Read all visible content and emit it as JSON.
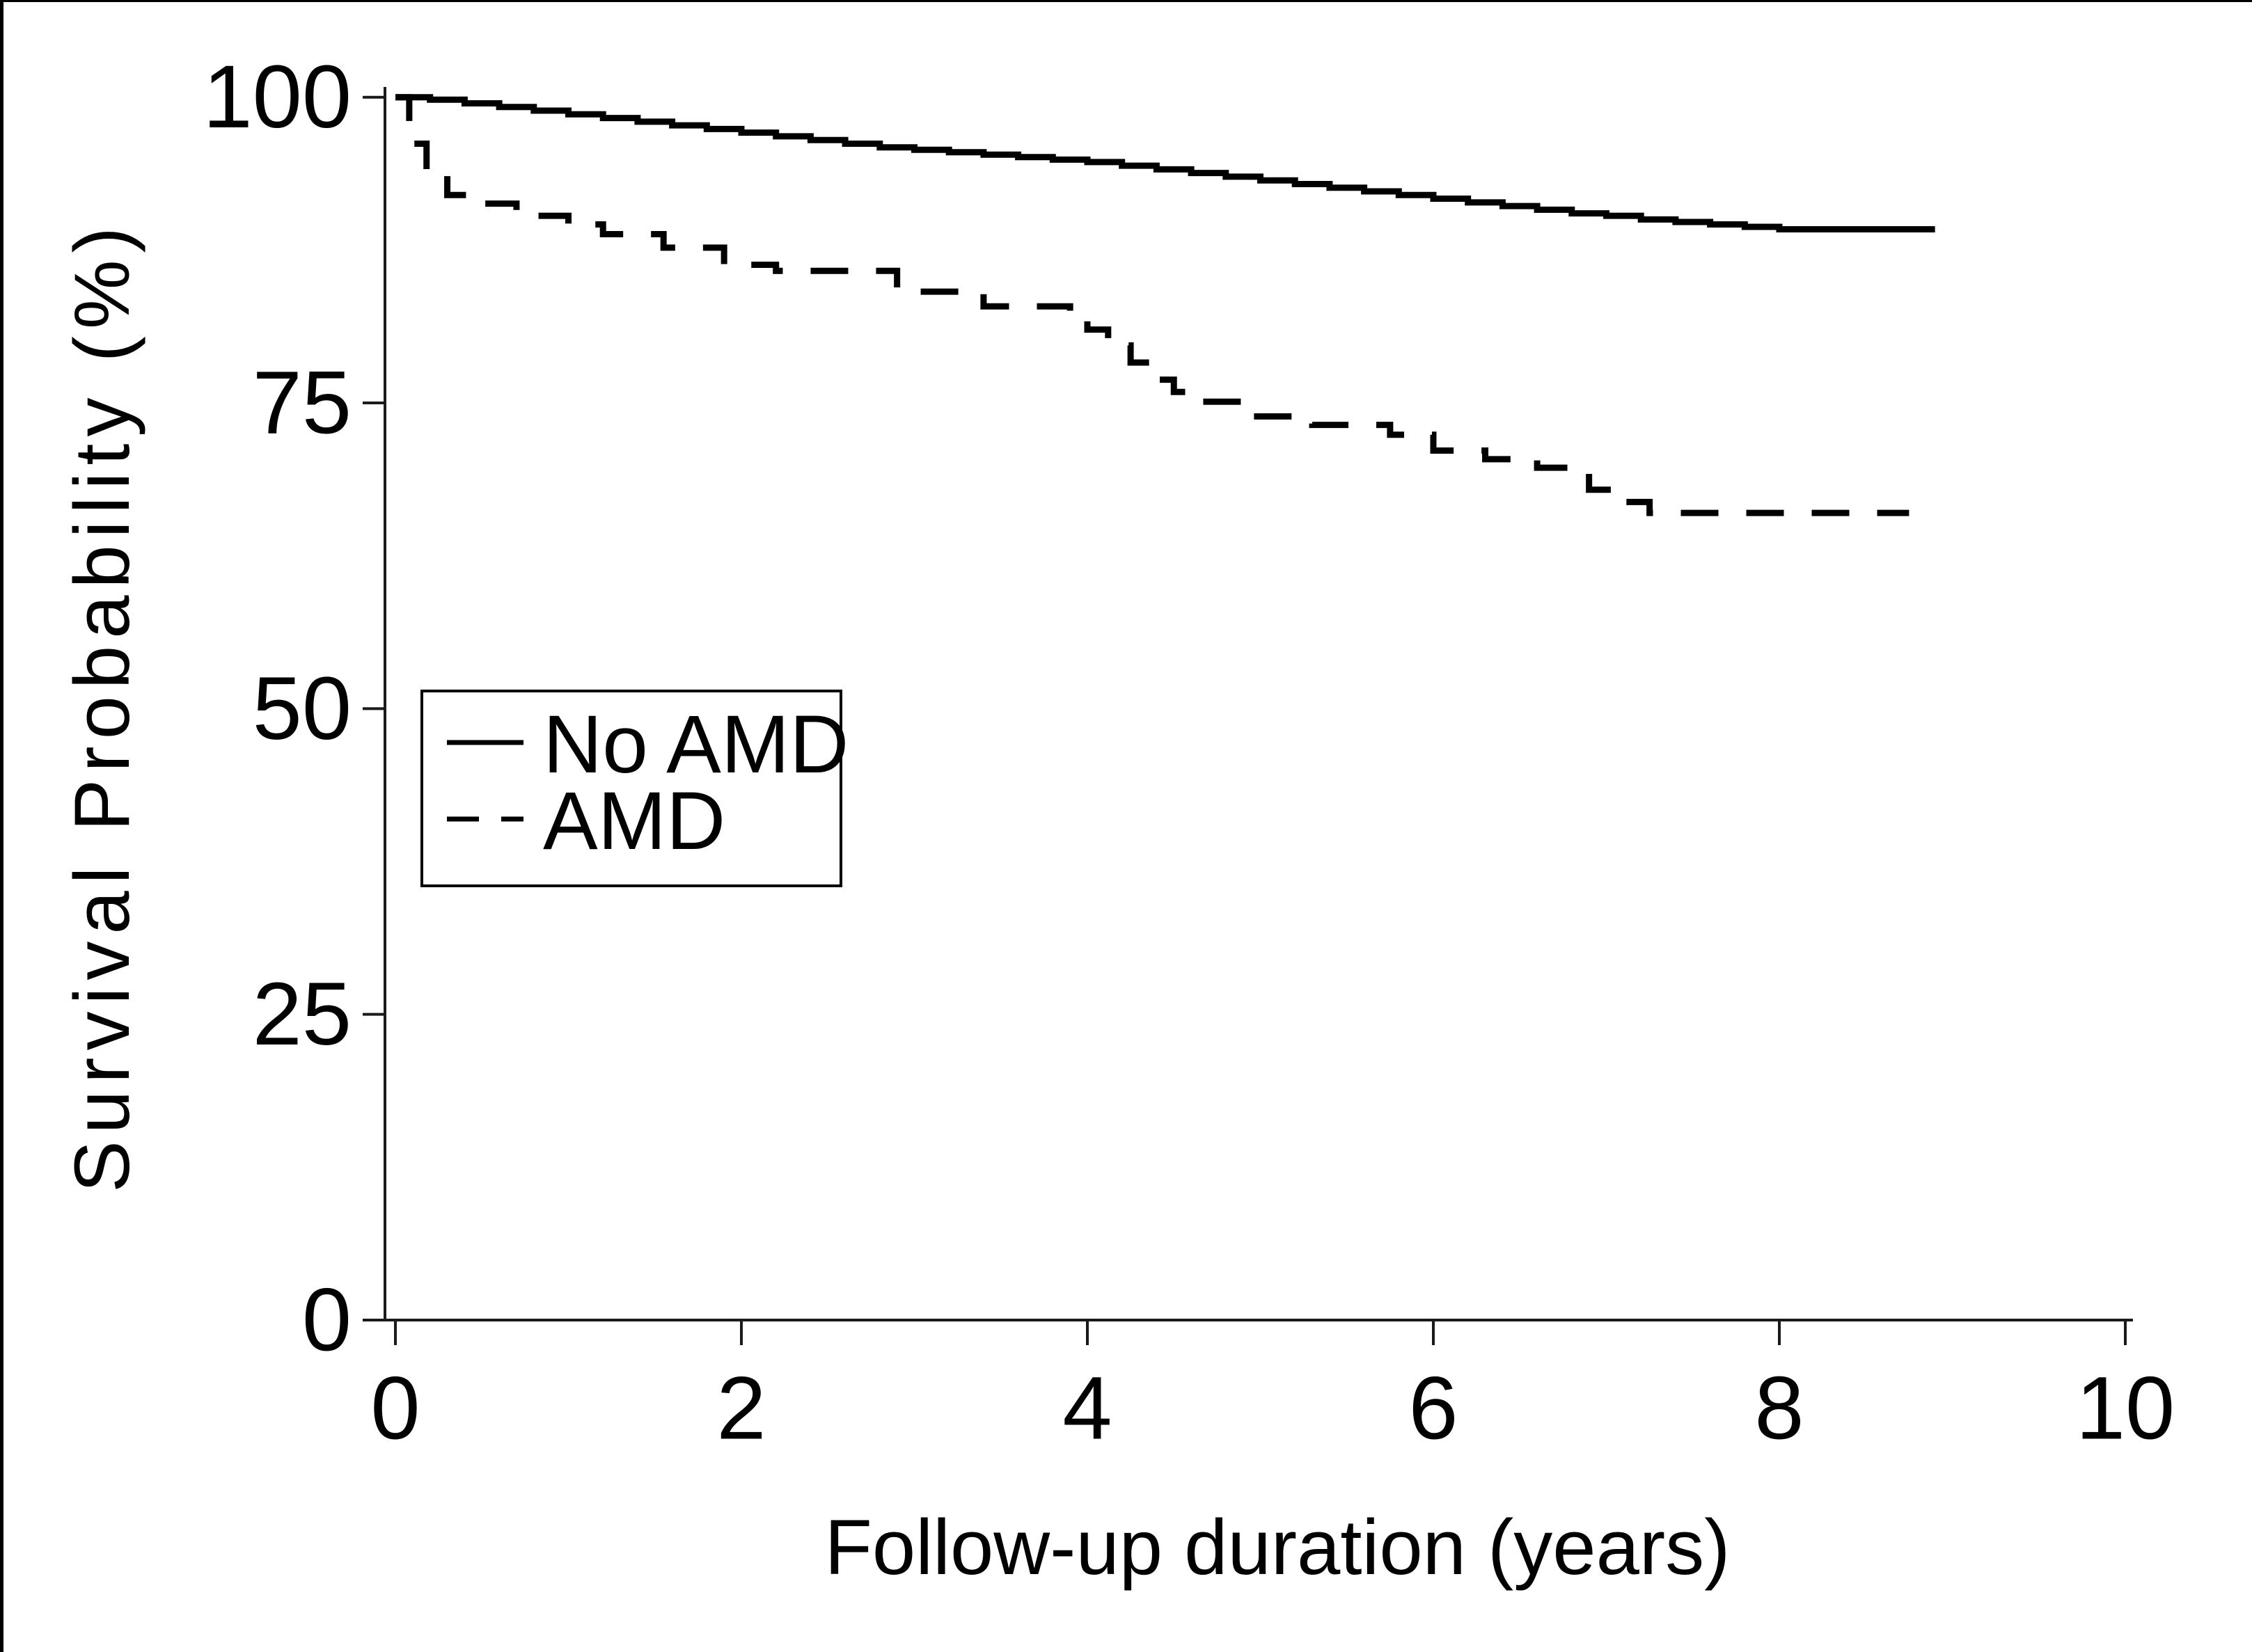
{
  "page": {
    "background": "#ffffff",
    "edge_border_color": "#000000",
    "curve_color": "#000000",
    "axis_color": "#1a1a1a"
  },
  "chart_data": {
    "type": "line",
    "subtype": "kaplan-meier-step",
    "title": "",
    "xlabel": "Follow-up duration (years)",
    "ylabel": "Survival Probability (%)",
    "xlim": [
      0,
      10
    ],
    "ylim": [
      0,
      100
    ],
    "x_ticks": [
      0,
      2,
      4,
      6,
      8,
      10
    ],
    "y_ticks": [
      100,
      75,
      50,
      25,
      0
    ],
    "grid": "off",
    "legend": {
      "position": "inside-left-middle",
      "items": [
        {
          "label": "No AMD",
          "style": "solid"
        },
        {
          "label": "AMD",
          "style": "dashed"
        }
      ]
    },
    "series": [
      {
        "name": "No AMD",
        "line": "solid",
        "color": "#000000",
        "end_t": 8.9,
        "points": [
          [
            0,
            100
          ],
          [
            0.2,
            99.8
          ],
          [
            0.4,
            99.5
          ],
          [
            0.6,
            99.2
          ],
          [
            0.8,
            98.9
          ],
          [
            1.0,
            98.6
          ],
          [
            1.2,
            98.3
          ],
          [
            1.4,
            98.0
          ],
          [
            1.6,
            97.7
          ],
          [
            1.8,
            97.4
          ],
          [
            2.0,
            97.1
          ],
          [
            2.2,
            96.8
          ],
          [
            2.4,
            96.5
          ],
          [
            2.6,
            96.2
          ],
          [
            2.8,
            95.9
          ],
          [
            3.0,
            95.7
          ],
          [
            3.2,
            95.5
          ],
          [
            3.4,
            95.3
          ],
          [
            3.6,
            95.1
          ],
          [
            3.8,
            94.9
          ],
          [
            4.0,
            94.7
          ],
          [
            4.2,
            94.4
          ],
          [
            4.4,
            94.1
          ],
          [
            4.6,
            93.8
          ],
          [
            4.8,
            93.5
          ],
          [
            5.0,
            93.2
          ],
          [
            5.2,
            92.9
          ],
          [
            5.4,
            92.6
          ],
          [
            5.6,
            92.3
          ],
          [
            5.8,
            92.0
          ],
          [
            6.0,
            91.7
          ],
          [
            6.2,
            91.4
          ],
          [
            6.4,
            91.1
          ],
          [
            6.6,
            90.8
          ],
          [
            6.8,
            90.5
          ],
          [
            7.0,
            90.3
          ],
          [
            7.2,
            90.0
          ],
          [
            7.4,
            89.8
          ],
          [
            7.6,
            89.6
          ],
          [
            7.8,
            89.4
          ],
          [
            8.0,
            89.2
          ]
        ]
      },
      {
        "name": "AMD",
        "line": "dashed",
        "color": "#000000",
        "end_t": 8.75,
        "points": [
          [
            0,
            100
          ],
          [
            0.08,
            96.2
          ],
          [
            0.18,
            93.8
          ],
          [
            0.3,
            92.0
          ],
          [
            0.45,
            91.3
          ],
          [
            0.7,
            90.3
          ],
          [
            1.0,
            89.6
          ],
          [
            1.2,
            88.8
          ],
          [
            1.55,
            87.7
          ],
          [
            1.9,
            86.3
          ],
          [
            2.2,
            85.8
          ],
          [
            2.9,
            84.1
          ],
          [
            3.4,
            82.9
          ],
          [
            3.9,
            82.2
          ],
          [
            4.0,
            81.0
          ],
          [
            4.12,
            79.7
          ],
          [
            4.25,
            78.3
          ],
          [
            4.37,
            76.9
          ],
          [
            4.5,
            75.9
          ],
          [
            4.62,
            75.1
          ],
          [
            4.9,
            73.9
          ],
          [
            5.3,
            73.2
          ],
          [
            5.75,
            72.4
          ],
          [
            6.0,
            71.1
          ],
          [
            6.3,
            70.4
          ],
          [
            6.6,
            69.7
          ],
          [
            6.9,
            67.9
          ],
          [
            7.1,
            66.9
          ],
          [
            7.25,
            66.0
          ]
        ]
      }
    ]
  }
}
